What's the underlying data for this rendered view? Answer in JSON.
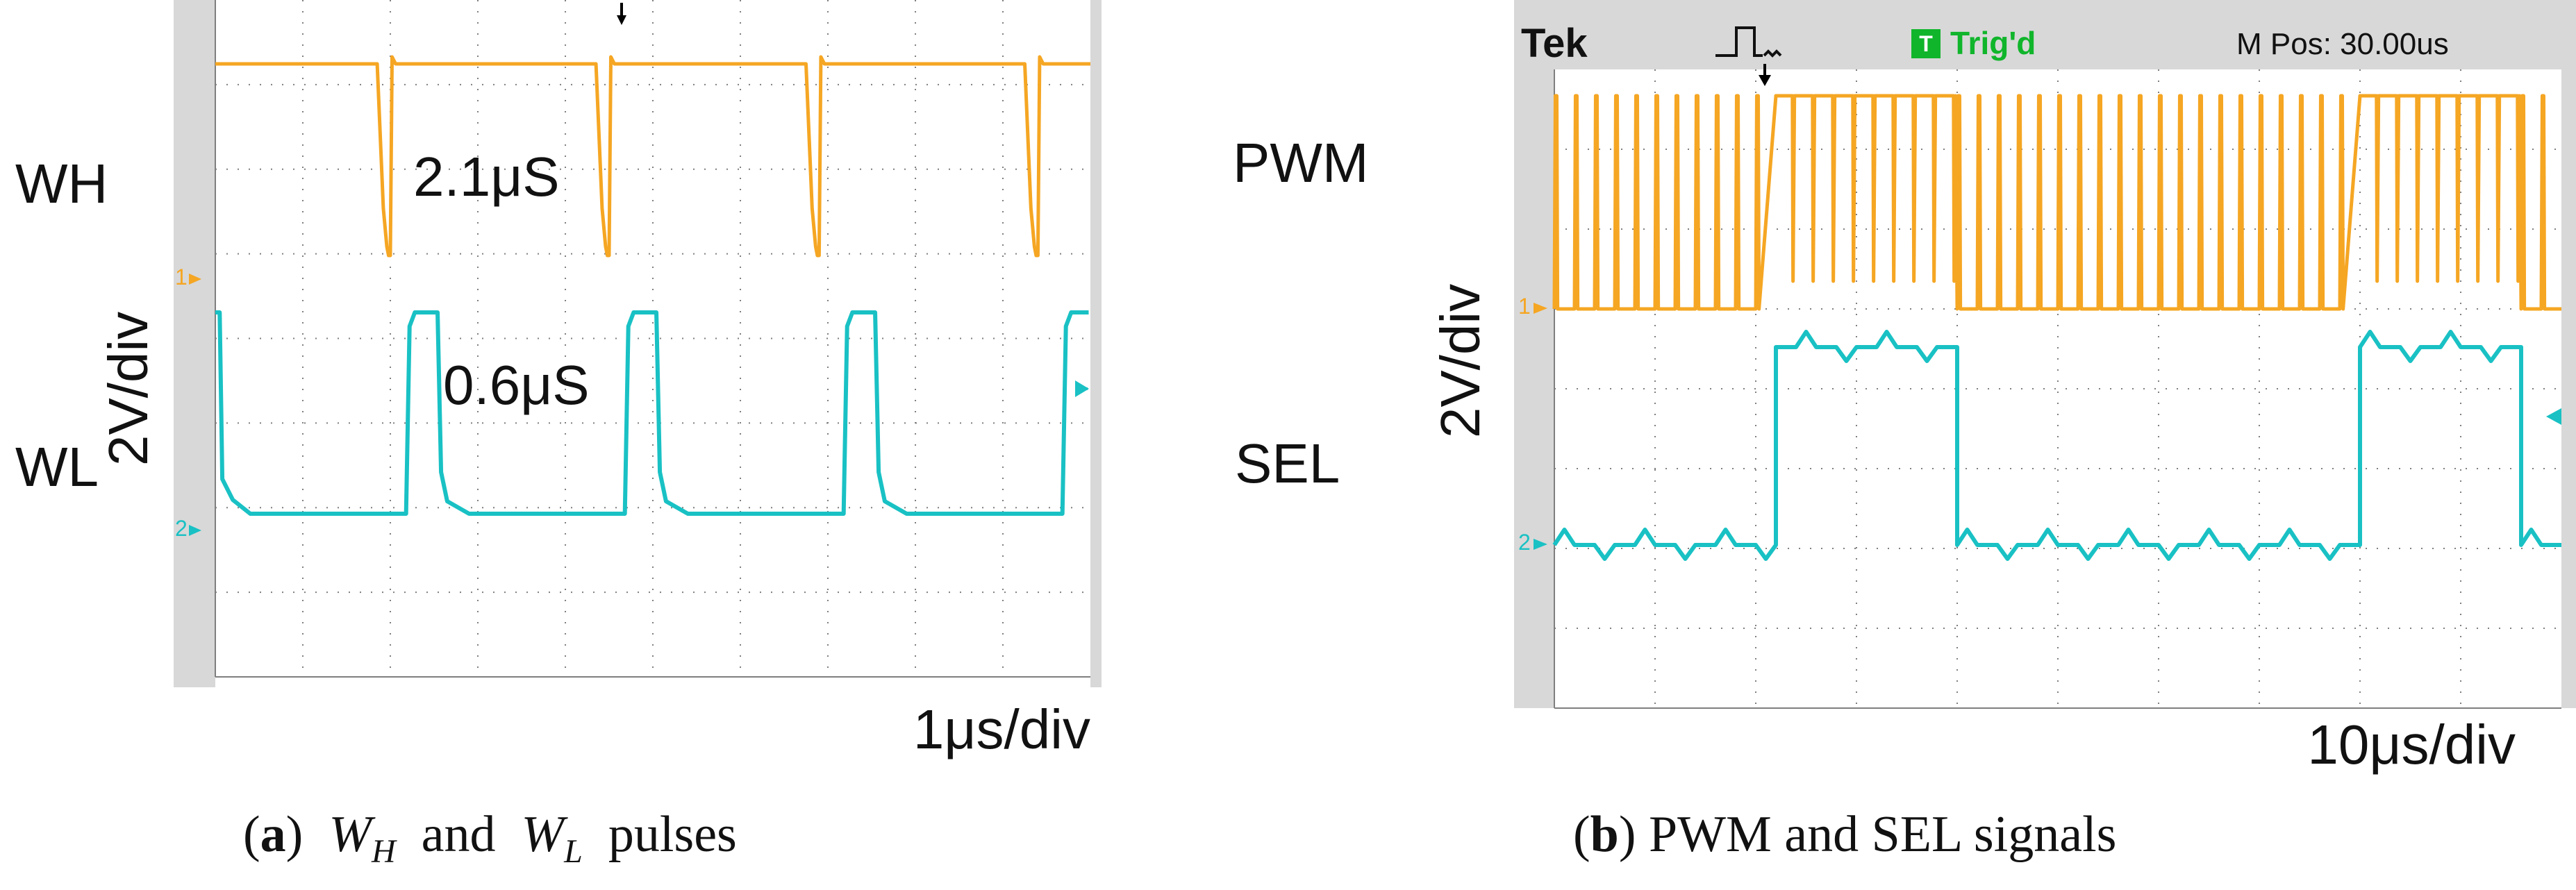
{
  "chart_data": [
    {
      "panel": "a",
      "type": "line",
      "title": "W_H and W_L pulses",
      "xlabel": "1μs/div",
      "ylabel": "2V/div",
      "xlim": [
        0,
        10
      ],
      "unit_x": "μs",
      "unit_y": "V",
      "series": [
        {
          "name": "WH",
          "channel": 1,
          "color": "#F5A623",
          "baseline_V": 0,
          "high_V": 5.2,
          "pulses_low": [
            [
              1.9,
              2.0
            ],
            [
              4.4,
              4.5
            ],
            [
              6.8,
              6.9
            ],
            [
              9.3,
              9.4
            ]
          ]
        },
        {
          "name": "WL",
          "channel": 2,
          "color": "#19C1C4",
          "baseline_V": 0,
          "high_V": 5.2,
          "pulses_high": [
            [
              2.2,
              2.6
            ],
            [
              4.7,
              5.1
            ],
            [
              7.2,
              7.6
            ],
            [
              9.7,
              10.0
            ]
          ]
        }
      ],
      "annotations": [
        "2.1μS",
        "0.6μS"
      ],
      "channel_markers": [
        "1",
        "2"
      ]
    },
    {
      "panel": "b",
      "type": "line",
      "title": "PWM and SEL signals",
      "xlabel": "10μs/div",
      "ylabel": "2V/div",
      "xlim": [
        0,
        100
      ],
      "unit_x": "μs",
      "unit_y": "V",
      "series": [
        {
          "name": "PWM",
          "channel": 1,
          "color": "#F5A623",
          "baseline_V": 0,
          "high_V": 5.0,
          "pulse_period_us": 2.0,
          "mostly_high_segments": [
            [
              22,
              40
            ],
            [
              80,
              96
            ]
          ]
        },
        {
          "name": "SEL",
          "channel": 2,
          "color": "#19C1C4",
          "baseline_V": 0,
          "high_V": 4.6,
          "high_segments": [
            [
              22,
              40
            ],
            [
              80,
              96
            ]
          ]
        }
      ],
      "channel_markers": [
        "1",
        "2"
      ]
    }
  ],
  "scope_header": {
    "brand": "Tek",
    "trigger_status": "Trig'd",
    "trigger_badge": "T",
    "position": "M Pos: 30.00",
    "position_unit": "us"
  },
  "labels": {
    "a_wh": "WH",
    "a_wl": "WL",
    "a_ann1": "2.1μS",
    "a_ann2": "0.6μS",
    "a_ylabel": "2V/div",
    "a_xlabel": "1μs/div",
    "b_pwm": "PWM",
    "b_sel": "SEL",
    "b_ylabel": "2V/div",
    "b_xlabel": "10μs/div",
    "ch1": "1",
    "ch2": "2"
  },
  "captions": {
    "a": {
      "tag": "a",
      "w": "W",
      "sub_h": "H",
      "and": "and",
      "sub_l": "L",
      "rest": "pulses"
    },
    "b": {
      "tag": "b",
      "text": "PWM and SEL signals"
    }
  },
  "colors": {
    "orange": "#F5A623",
    "cyan": "#19C1C4",
    "grid": "#7f7f7f",
    "screen_bg": "#ffffff",
    "bezel": "#d8d8d8",
    "trig_green": "#10B52B"
  }
}
